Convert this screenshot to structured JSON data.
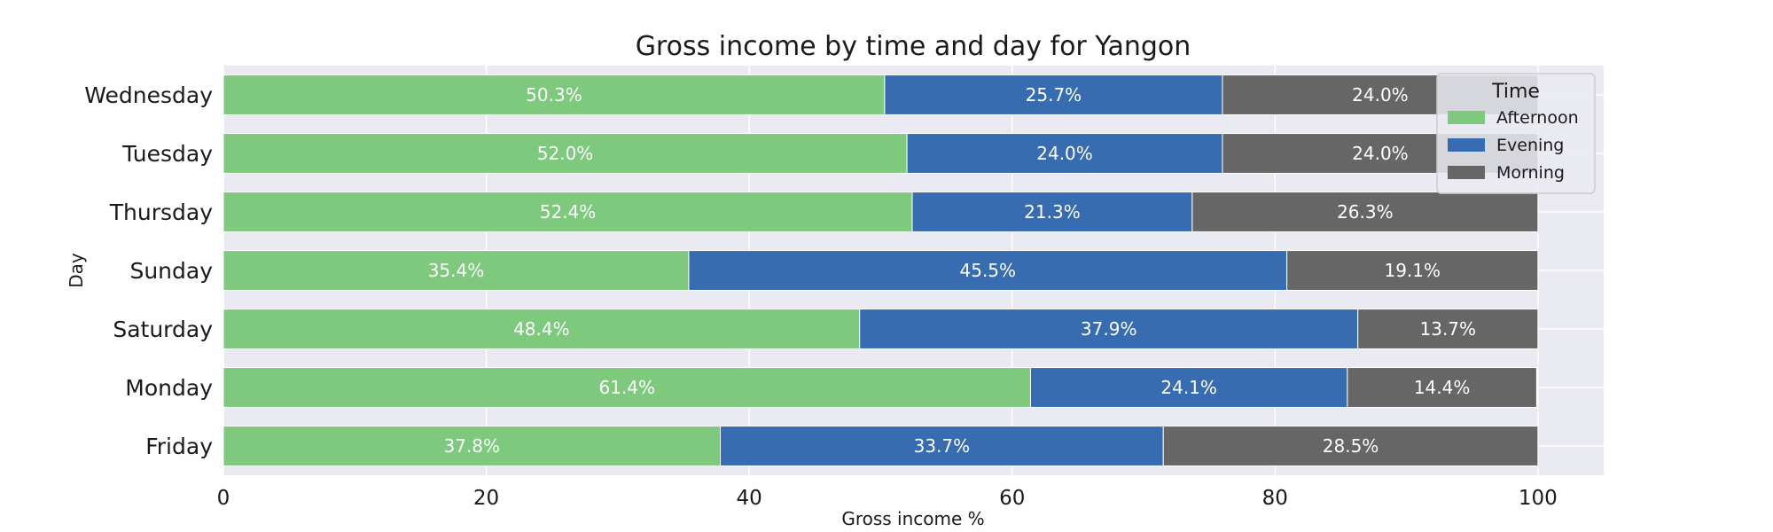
{
  "chart_data": {
    "type": "bar",
    "orientation": "horizontal",
    "stacked": true,
    "title": "Gross income by time and day for Yangon",
    "xlabel": "Gross income %",
    "ylabel": "Day",
    "xlim": [
      0,
      105
    ],
    "xticks": [
      "0",
      "20",
      "40",
      "60",
      "80",
      "100"
    ],
    "grid": true,
    "legend": {
      "title": "Time",
      "placement": "top-right"
    },
    "categories": [
      "Wednesday",
      "Tuesday",
      "Thursday",
      "Sunday",
      "Saturday",
      "Monday",
      "Friday"
    ],
    "series": [
      {
        "name": "Afternoon",
        "color": "#7fc97f",
        "values": [
          50.3,
          52.0,
          52.4,
          35.4,
          48.4,
          61.4,
          37.8
        ],
        "labels": [
          "50.3%",
          "52.0%",
          "52.4%",
          "35.4%",
          "48.4%",
          "61.4%",
          "37.8%"
        ]
      },
      {
        "name": "Evening",
        "color": "#386cb0",
        "values": [
          25.7,
          24.0,
          21.3,
          45.5,
          37.9,
          24.1,
          33.7
        ],
        "labels": [
          "25.7%",
          "24.0%",
          "21.3%",
          "45.5%",
          "37.9%",
          "24.1%",
          "33.7%"
        ]
      },
      {
        "name": "Morning",
        "color": "#666666",
        "values": [
          24.0,
          24.0,
          26.3,
          19.1,
          13.7,
          14.4,
          28.5
        ],
        "labels": [
          "24.0%",
          "24.0%",
          "26.3%",
          "19.1%",
          "13.7%",
          "14.4%",
          "28.5%"
        ]
      }
    ]
  },
  "colors": {
    "plot_background": "#eaeaf2",
    "grid": "#ffffff"
  }
}
